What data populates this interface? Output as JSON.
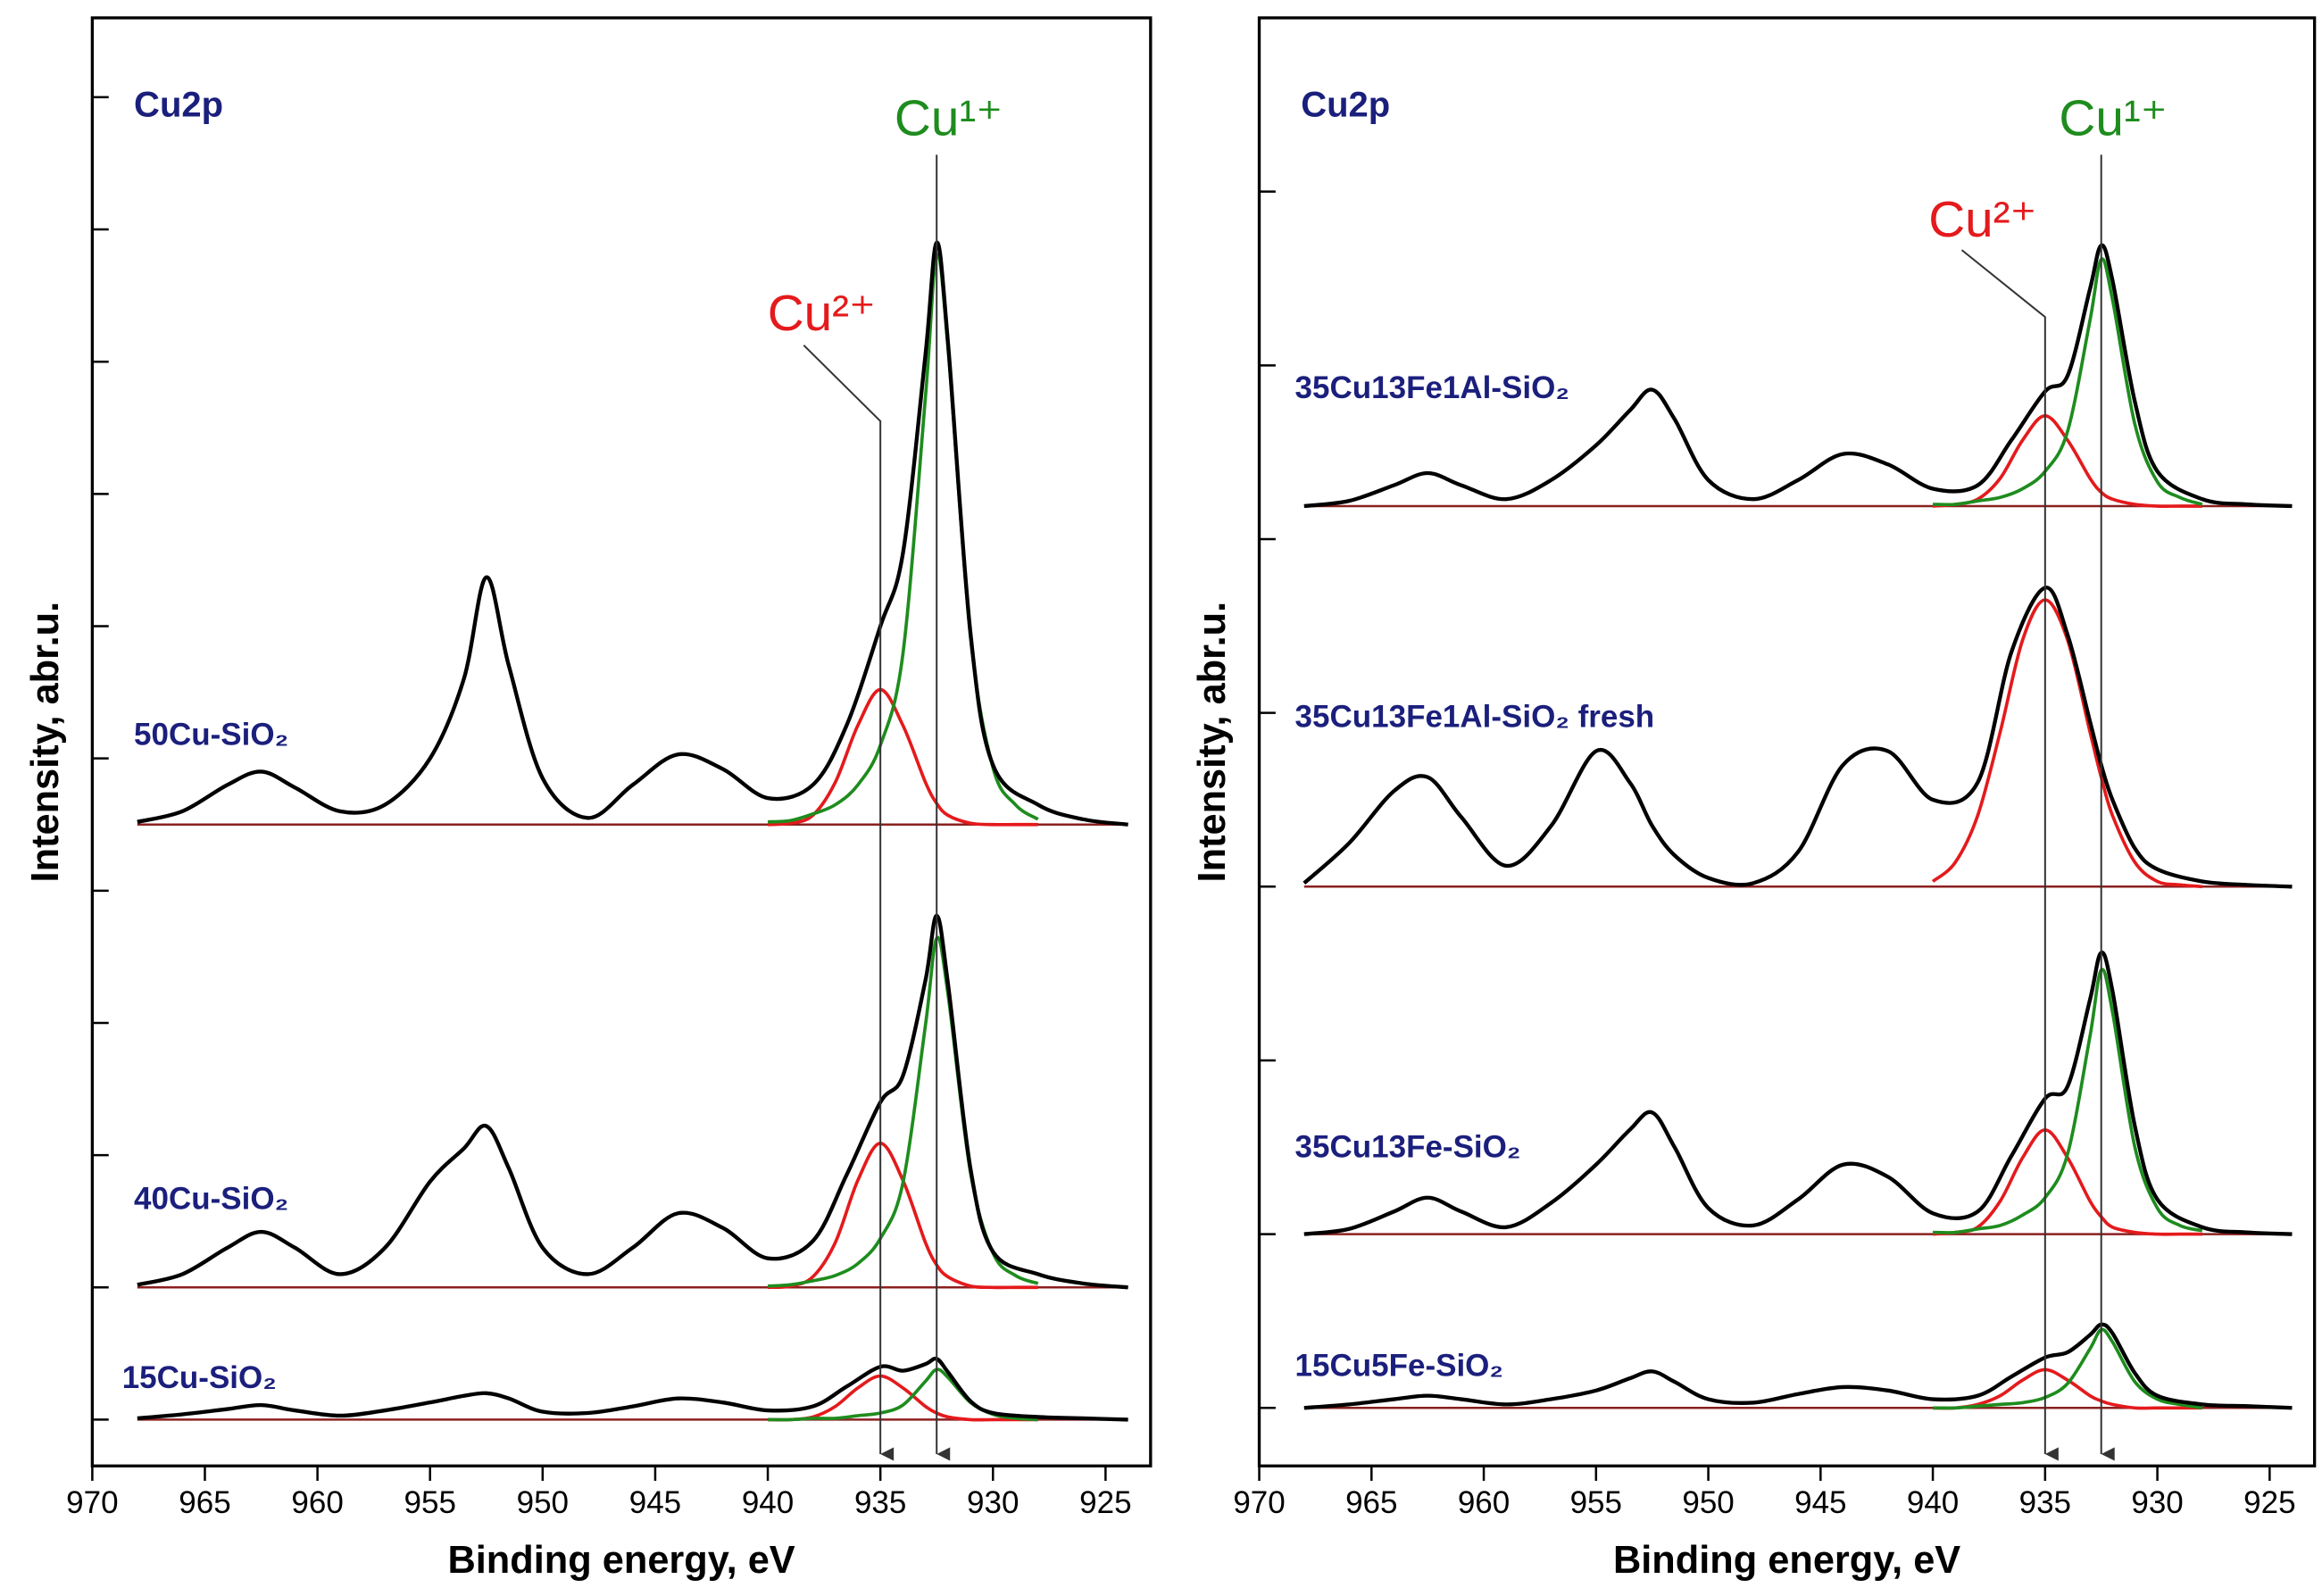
{
  "chart_data": [
    {
      "type": "line",
      "title": "Cu2p",
      "xlabel": "Binding energy, eV",
      "ylabel": "Intensity, abr.u.",
      "xlim": [
        970,
        923
      ],
      "xticks": [
        970,
        965,
        960,
        955,
        950,
        945,
        940,
        935,
        930,
        925
      ],
      "ylim": [
        -0.35,
        10.6
      ],
      "yticks": [
        0,
        1,
        2,
        3,
        4,
        5,
        6,
        7,
        8,
        9,
        10
      ],
      "label_color": "#1b1f7c",
      "baseline_color": "#8b2020",
      "x": [
        968,
        966,
        964,
        962.5,
        961,
        959,
        957,
        955,
        953.5,
        952.5,
        951.5,
        950,
        948,
        946,
        944,
        942,
        940,
        938,
        936.5,
        935,
        934,
        933,
        932.5,
        932,
        931,
        930,
        928,
        926,
        924
      ],
      "series": [
        {
          "name": "50Cu-SiO₂",
          "color": "#000000",
          "baseline": 4.5,
          "values": [
            4.52,
            4.6,
            4.8,
            4.9,
            4.78,
            4.6,
            4.65,
            5.0,
            5.6,
            6.37,
            5.7,
            4.85,
            4.55,
            4.8,
            5.03,
            4.92,
            4.7,
            4.8,
            5.25,
            6.0,
            6.55,
            8.05,
            8.9,
            8.15,
            5.95,
            4.95,
            4.65,
            4.54,
            4.5
          ],
          "components": [
            {
              "color": "#e41a1c",
              "x": [
                940,
                939,
                938,
                937,
                936,
                935,
                934,
                933,
                932.5,
                932,
                931,
                930,
                929,
                928
              ],
              "values": [
                4.5,
                4.51,
                4.57,
                4.82,
                5.25,
                5.52,
                5.25,
                4.82,
                4.66,
                4.57,
                4.51,
                4.5,
                4.5,
                4.5
              ]
            },
            {
              "color": "#1e8c1e",
              "x": [
                940,
                939,
                938,
                937,
                936,
                935,
                934,
                933,
                932.5,
                932,
                931,
                930,
                929,
                928
              ],
              "values": [
                4.52,
                4.53,
                4.58,
                4.65,
                4.8,
                5.1,
                5.79,
                7.73,
                8.8,
                8.11,
                5.92,
                4.93,
                4.65,
                4.54
              ]
            }
          ]
        },
        {
          "name": "40Cu-SiO₂",
          "color": "#000000",
          "baseline": 1.0,
          "values": [
            1.02,
            1.1,
            1.3,
            1.42,
            1.3,
            1.1,
            1.3,
            1.8,
            2.05,
            2.22,
            1.9,
            1.3,
            1.1,
            1.3,
            1.56,
            1.45,
            1.22,
            1.35,
            1.85,
            2.4,
            2.6,
            3.32,
            3.81,
            3.3,
            1.9,
            1.27,
            1.1,
            1.03,
            1.0
          ],
          "components": [
            {
              "color": "#e41a1c",
              "x": [
                940,
                939,
                938,
                937,
                936,
                935,
                934,
                933,
                932.5,
                932,
                931,
                930,
                929,
                928
              ],
              "values": [
                1,
                1.01,
                1.08,
                1.34,
                1.81,
                2.09,
                1.81,
                1.34,
                1.17,
                1.08,
                1.01,
                1,
                1,
                1
              ]
            },
            {
              "color": "#1e8c1e",
              "x": [
                940,
                939,
                938,
                937,
                936,
                935,
                934,
                933,
                932.5,
                932,
                931,
                930,
                929,
                928
              ],
              "values": [
                1.01,
                1.02,
                1.05,
                1.09,
                1.18,
                1.37,
                1.79,
                2.98,
                3.64,
                3.22,
                1.87,
                1.26,
                1.09,
                1.03
              ]
            }
          ]
        },
        {
          "name": "15Cu-SiO₂",
          "color": "#000000",
          "baseline": 0,
          "values": [
            0.01,
            0.04,
            0.08,
            0.11,
            0.07,
            0.03,
            0.07,
            0.13,
            0.18,
            0.2,
            0.16,
            0.06,
            0.05,
            0.1,
            0.16,
            0.13,
            0.07,
            0.1,
            0.25,
            0.4,
            0.37,
            0.42,
            0.46,
            0.36,
            0.14,
            0.05,
            0.02,
            0.01,
            0
          ],
          "components": [
            {
              "color": "#e41a1c",
              "x": [
                940,
                939,
                938,
                937,
                936,
                935,
                934,
                933,
                932.5,
                932,
                931,
                930,
                929,
                928
              ],
              "values": [
                0,
                0,
                0.02,
                0.1,
                0.24,
                0.33,
                0.24,
                0.1,
                0.05,
                0.02,
                0,
                0,
                0,
                0
              ]
            },
            {
              "color": "#1e8c1e",
              "x": [
                940,
                939,
                938,
                937,
                936,
                935,
                934,
                933,
                932.5,
                932,
                931,
                930,
                929,
                928
              ],
              "values": [
                0,
                0,
                0.01,
                0.01,
                0.03,
                0.05,
                0.11,
                0.29,
                0.38,
                0.32,
                0.13,
                0.04,
                0.01,
                0
              ]
            }
          ]
        }
      ],
      "annotations": [
        {
          "text": "Cu²⁺",
          "x": 935,
          "color": "#e41a1c"
        },
        {
          "text": "Cu¹⁺",
          "x": 932.5,
          "color": "#1e8c1e"
        }
      ]
    },
    {
      "type": "line",
      "title": "Cu2p",
      "xlabel": "Binding energy, eV",
      "ylabel": "Intensity, abr.u.",
      "xlim": [
        970,
        923
      ],
      "xticks": [
        970,
        965,
        960,
        955,
        950,
        945,
        940,
        935,
        930,
        925
      ],
      "ylim": [
        -0.334,
        8.0
      ],
      "yticks": [
        0,
        1,
        2,
        3,
        4,
        5,
        6,
        7
      ],
      "label_color": "#1b1f7c",
      "baseline_color": "#8b2020",
      "x": [
        968,
        966,
        964,
        962.5,
        961,
        959,
        957,
        955,
        953.5,
        952.5,
        951.5,
        950,
        948,
        946,
        944,
        942,
        940,
        938,
        936.5,
        935,
        934,
        933,
        932.5,
        932,
        931,
        930,
        928,
        926,
        924
      ],
      "series": [
        {
          "name": "35Cu13Fe1Al-SiO₂",
          "color": "#000000",
          "baseline": 5.19,
          "values": [
            5.19,
            5.22,
            5.31,
            5.38,
            5.31,
            5.23,
            5.34,
            5.54,
            5.74,
            5.86,
            5.69,
            5.34,
            5.23,
            5.34,
            5.49,
            5.43,
            5.29,
            5.31,
            5.57,
            5.85,
            5.94,
            6.44,
            6.69,
            6.49,
            5.79,
            5.39,
            5.23,
            5.2,
            5.19
          ],
          "components": [
            {
              "color": "#e41a1c",
              "x": [
                940,
                939,
                938,
                937,
                936,
                935,
                934,
                933,
                932.5,
                932,
                931,
                930,
                929,
                928
              ],
              "values": [
                5.19,
                5.2,
                5.23,
                5.35,
                5.57,
                5.71,
                5.57,
                5.35,
                5.27,
                5.23,
                5.2,
                5.19,
                5.19,
                5.19
              ]
            },
            {
              "color": "#1e8c1e",
              "x": [
                940,
                939,
                938,
                937,
                936,
                935,
                934,
                933,
                932.5,
                932,
                931,
                930,
                929,
                928
              ],
              "values": [
                5.2,
                5.2,
                5.22,
                5.24,
                5.29,
                5.39,
                5.62,
                6.26,
                6.61,
                6.38,
                5.66,
                5.33,
                5.24,
                5.2
              ]
            }
          ]
        },
        {
          "name": "35Cu13Fe1Al-SiO₂ fresh",
          "color": "#000000",
          "baseline": 3.0,
          "values": [
            3.02,
            3.25,
            3.55,
            3.63,
            3.4,
            3.12,
            3.35,
            3.78,
            3.6,
            3.35,
            3.18,
            3.05,
            3.02,
            3.2,
            3.7,
            3.78,
            3.5,
            3.6,
            4.35,
            4.72,
            4.45,
            3.95,
            3.7,
            3.5,
            3.22,
            3.1,
            3.03,
            3.01,
            3.0
          ],
          "components": [
            {
              "color": "#e41a1c",
              "x": [
                940,
                939,
                938,
                937,
                936,
                935,
                934,
                933,
                932.5,
                932,
                931,
                930,
                929,
                928
              ],
              "values": [
                3.03,
                3.14,
                3.41,
                3.89,
                4.42,
                4.65,
                4.42,
                3.89,
                3.63,
                3.41,
                3.14,
                3.03,
                3.01,
                3.0
              ]
            }
          ]
        },
        {
          "name": "35Cu13Fe-SiO₂",
          "color": "#000000",
          "baseline": 1.0,
          "values": [
            1.0,
            1.03,
            1.13,
            1.21,
            1.13,
            1.04,
            1.18,
            1.4,
            1.6,
            1.7,
            1.5,
            1.15,
            1.05,
            1.2,
            1.4,
            1.33,
            1.12,
            1.13,
            1.45,
            1.78,
            1.85,
            2.35,
            2.62,
            2.4,
            1.62,
            1.2,
            1.04,
            1.01,
            1.0
          ],
          "components": [
            {
              "color": "#e41a1c",
              "x": [
                940,
                939,
                938,
                937,
                936,
                935,
                934,
                933,
                932.5,
                932,
                931,
                930,
                929,
                928
              ],
              "values": [
                1,
                1.01,
                1.04,
                1.19,
                1.44,
                1.6,
                1.44,
                1.19,
                1.1,
                1.04,
                1.01,
                1,
                1,
                1
              ]
            },
            {
              "color": "#1e8c1e",
              "x": [
                940,
                939,
                938,
                937,
                936,
                935,
                934,
                933,
                932.5,
                932,
                931,
                930,
                929,
                928
              ],
              "values": [
                1.01,
                1.01,
                1.03,
                1.05,
                1.11,
                1.21,
                1.46,
                2.14,
                2.52,
                2.28,
                1.5,
                1.15,
                1.05,
                1.02
              ]
            }
          ]
        },
        {
          "name": "15Cu5Fe-SiO₂",
          "color": "#000000",
          "baseline": 0,
          "values": [
            0,
            0.02,
            0.05,
            0.07,
            0.05,
            0.02,
            0.05,
            0.1,
            0.17,
            0.21,
            0.15,
            0.05,
            0.03,
            0.08,
            0.12,
            0.1,
            0.05,
            0.07,
            0.18,
            0.29,
            0.32,
            0.42,
            0.48,
            0.43,
            0.2,
            0.07,
            0.02,
            0.01,
            0
          ],
          "components": [
            {
              "color": "#e41a1c",
              "x": [
                940,
                939,
                938,
                937,
                936,
                935,
                934,
                933,
                932.5,
                932,
                931,
                930,
                929,
                928
              ],
              "values": [
                0,
                0,
                0.02,
                0.07,
                0.16,
                0.22,
                0.16,
                0.07,
                0.04,
                0.02,
                0,
                0,
                0,
                0
              ]
            },
            {
              "color": "#1e8c1e",
              "x": [
                940,
                939,
                938,
                937,
                936,
                935,
                934,
                933,
                932.5,
                932,
                931,
                930,
                929,
                928
              ],
              "values": [
                0,
                0,
                0.01,
                0.02,
                0.03,
                0.06,
                0.14,
                0.34,
                0.45,
                0.38,
                0.15,
                0.05,
                0.02,
                0
              ]
            }
          ]
        }
      ],
      "annotations": [
        {
          "text": "Cu²⁺",
          "x": 935,
          "color": "#e41a1c"
        },
        {
          "text": "Cu¹⁺",
          "x": 932.5,
          "color": "#1e8c1e"
        }
      ]
    }
  ]
}
